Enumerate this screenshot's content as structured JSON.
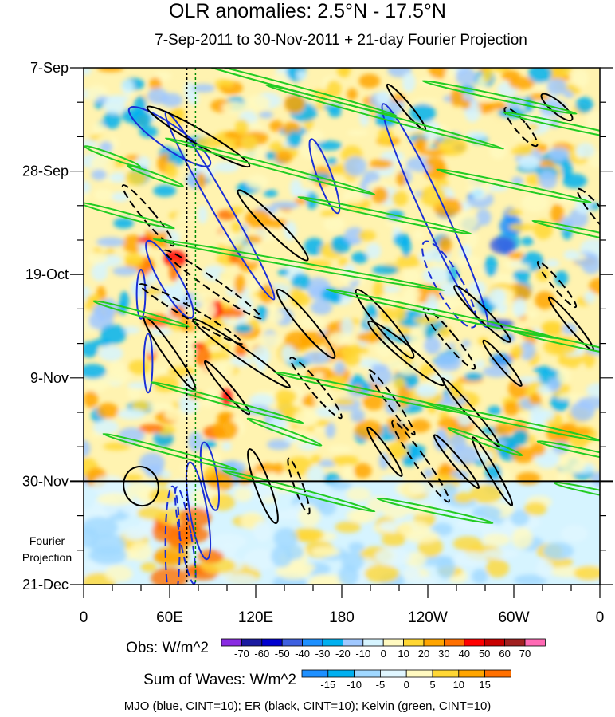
{
  "chart_data": {
    "type": "heatmap",
    "title": "OLR anomalies: 2.5°N - 17.5°N",
    "subtitle": "7-Sep-2011 to 30-Nov-2011 + 21-day Fourier Projection",
    "x_ticks": [
      "0",
      "60E",
      "120E",
      "180",
      "120W",
      "60W",
      "0"
    ],
    "x_tick_values_deg": [
      0,
      60,
      120,
      180,
      240,
      300,
      360
    ],
    "y_ticks": [
      "7-Sep",
      "28-Sep",
      "19-Oct",
      "9-Nov",
      "30-Nov",
      "21-Dec"
    ],
    "y_tick_values_days": [
      0,
      21,
      42,
      63,
      84,
      105
    ],
    "forecast_label": [
      "Fourier",
      "Projection"
    ],
    "observed_end_day": 84,
    "obs_colorbar": {
      "label": "Obs: W/m^2",
      "levels": [
        "-70",
        "-60",
        "-50",
        "-40",
        "-30",
        "-20",
        "-10",
        "0",
        "10",
        "20",
        "30",
        "40",
        "50",
        "60",
        "70"
      ],
      "colors": [
        "#8a2be2",
        "#1a1aa0",
        "#0000d0",
        "#3e60e0",
        "#1e90ff",
        "#00b0f0",
        "#a0c8ff",
        "#d6f4ff",
        "#fff9c0",
        "#ffd733",
        "#ffa500",
        "#ff7000",
        "#ff0000",
        "#c80000",
        "#a02020",
        "#ff69b4"
      ]
    },
    "waves_colorbar": {
      "label": "Sum of Waves: W/m^2",
      "levels": [
        "-15",
        "-10",
        "-5",
        "0",
        "5",
        "10",
        "15"
      ],
      "colors": [
        "#1e90ff",
        "#00b0f0",
        "#a0d8ff",
        "#e0f6ff",
        "#fff9c0",
        "#ffd733",
        "#ffa500",
        "#ff7000"
      ]
    },
    "dashed_vertical_lines_deg": {
      "black": 72,
      "green": 78
    },
    "contour_series": [
      {
        "name": "MJO",
        "color": "blue",
        "cint": 10
      },
      {
        "name": "ER",
        "color": "black",
        "cint": 10
      },
      {
        "name": "Kelvin",
        "color": "green",
        "cint": 10
      }
    ],
    "contours": {
      "mjo": [
        [
          60,
          14,
          8,
          10,
          -55,
          1
        ],
        [
          95,
          28,
          6,
          22,
          -30,
          1
        ],
        [
          168,
          22,
          5,
          8,
          -20,
          1
        ],
        [
          245,
          30,
          8,
          25,
          -25,
          1
        ],
        [
          255,
          44,
          9,
          10,
          -30,
          -1
        ],
        [
          80,
          90,
          6,
          10,
          -10,
          1
        ],
        [
          88,
          83,
          5,
          7,
          -10,
          1
        ],
        [
          60,
          43,
          7,
          9,
          -30,
          1
        ],
        [
          62,
          97,
          5,
          12,
          0,
          -1
        ],
        [
          71,
          95,
          4,
          10,
          -10,
          -1
        ],
        [
          40,
          46,
          3,
          5,
          0,
          1
        ],
        [
          45,
          60,
          3,
          6,
          0,
          1
        ]
      ],
      "er": [
        [
          80,
          14,
          5,
          12,
          -60,
          1
        ],
        [
          132,
          32,
          5,
          10,
          -45,
          1
        ],
        [
          155,
          52,
          5,
          9,
          -40,
          1
        ],
        [
          210,
          52,
          5,
          9,
          -40,
          1
        ],
        [
          225,
          58,
          5,
          10,
          -50,
          1
        ],
        [
          278,
          50,
          4,
          8,
          -45,
          1
        ],
        [
          292,
          60,
          3,
          6,
          -40,
          1
        ],
        [
          340,
          52,
          3,
          7,
          -40,
          1
        ],
        [
          270,
          70,
          3,
          9,
          -40,
          1
        ],
        [
          285,
          82,
          3,
          8,
          -30,
          1
        ],
        [
          210,
          78,
          3,
          6,
          -35,
          1
        ],
        [
          100,
          65,
          3,
          7,
          -40,
          1
        ],
        [
          110,
          58,
          4,
          12,
          -55,
          1
        ],
        [
          60,
          58,
          4,
          9,
          -35,
          1
        ],
        [
          90,
          44,
          4,
          12,
          -55,
          -1
        ],
        [
          75,
          50,
          4,
          12,
          -60,
          -1
        ],
        [
          125,
          85,
          5,
          8,
          -20,
          1
        ],
        [
          40,
          85,
          12,
          4,
          -15,
          1
        ],
        [
          162,
          65,
          4,
          8,
          -40,
          -1
        ],
        [
          215,
          68,
          3,
          8,
          -35,
          -1
        ],
        [
          150,
          85,
          3,
          6,
          -20,
          -1
        ],
        [
          235,
          80,
          4,
          10,
          -35,
          -1
        ],
        [
          255,
          55,
          4,
          8,
          -40,
          -1
        ],
        [
          330,
          44,
          3,
          6,
          -40,
          -1
        ],
        [
          225,
          8,
          3,
          6,
          -40,
          1
        ],
        [
          305,
          12,
          4,
          5,
          -40,
          -1
        ],
        [
          330,
          8,
          4,
          4,
          -50,
          1
        ],
        [
          360,
          30,
          4,
          7,
          -40,
          -1
        ],
        [
          260,
          80,
          3,
          7,
          -40,
          1
        ],
        [
          45,
          30,
          4,
          8,
          -40,
          -1
        ]
      ],
      "kelvin": [
        [
          145,
          4,
          1,
          22,
          -75
        ],
        [
          210,
          10,
          1,
          25,
          -75
        ],
        [
          290,
          6,
          1,
          16,
          -78
        ],
        [
          340,
          12,
          1,
          14,
          -78
        ],
        [
          130,
          20,
          1,
          22,
          -75
        ],
        [
          210,
          30,
          1,
          18,
          -78
        ],
        [
          300,
          24,
          1,
          16,
          -78
        ],
        [
          360,
          34,
          1,
          14,
          -78
        ],
        [
          30,
          30,
          1,
          10,
          -75
        ],
        [
          150,
          40,
          1,
          30,
          -80
        ],
        [
          250,
          50,
          1,
          24,
          -78
        ],
        [
          340,
          56,
          1,
          12,
          -78
        ],
        [
          40,
          50,
          1,
          10,
          -75
        ],
        [
          100,
          68,
          1,
          16,
          -75
        ],
        [
          200,
          66,
          1,
          20,
          -78
        ],
        [
          300,
          72,
          1,
          18,
          -78
        ],
        [
          350,
          78,
          1,
          10,
          -78
        ],
        [
          60,
          78,
          1,
          14,
          -75
        ],
        [
          150,
          86,
          1,
          16,
          -75
        ],
        [
          245,
          90,
          1,
          12,
          -78
        ],
        [
          355,
          86,
          1,
          8,
          -78
        ],
        [
          20,
          18,
          1,
          6,
          -70
        ],
        [
          50,
          22,
          1,
          6,
          -70
        ],
        [
          140,
          74,
          1,
          8,
          -70
        ],
        [
          280,
          76,
          1,
          8,
          -70
        ]
      ]
    }
  },
  "caption": "MJO (blue, CINT=10); ER (black, CINT=10); Kelvin (green, CINT=10)"
}
